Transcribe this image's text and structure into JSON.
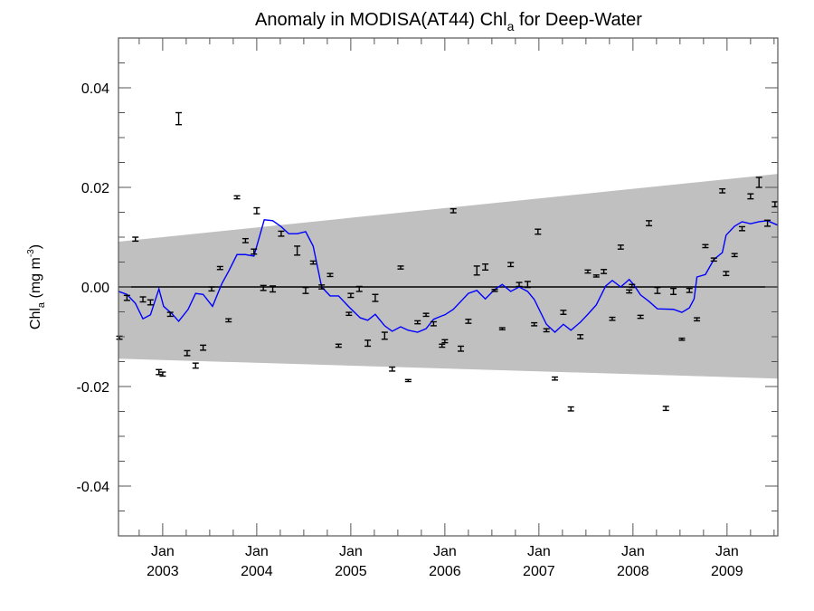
{
  "chart_data": {
    "type": "scatter",
    "title": "Anomaly in MODISA(AT44) Chl",
    "title_subscript": "a",
    "title_suffix": " for Deep-Water",
    "ylabel": "Chl",
    "ylabel_subscript": "a",
    "ylabel_units": " (mg m",
    "ylabel_units_sup": "-3",
    "ylabel_units_close": ")",
    "xlim": [
      2002.53,
      2009.54
    ],
    "ylim": [
      -0.05,
      0.05
    ],
    "yticks": [
      0.04,
      0.02,
      0.0,
      -0.02,
      -0.04
    ],
    "ytick_labels": [
      "0.04",
      "0.02",
      "0.00",
      "-0.02",
      "-0.04"
    ],
    "yminor_step": 0.005,
    "xticks": [
      2003,
      2004,
      2005,
      2006,
      2007,
      2008,
      2009
    ],
    "xtick_labels_top": [
      "Jan",
      "Jan",
      "Jan",
      "Jan",
      "Jan",
      "Jan",
      "Jan"
    ],
    "xtick_labels_bottom": [
      "2003",
      "2004",
      "2005",
      "2006",
      "2007",
      "2008",
      "2009"
    ],
    "xminor_step": 0.25,
    "zero_line": 0.0,
    "band": {
      "name": "confidence envelope",
      "color": "#c0c0c0",
      "upper": [
        [
          2002.53,
          0.0091
        ],
        [
          2009.54,
          0.0227
        ]
      ],
      "lower": [
        [
          2002.53,
          -0.0144
        ],
        [
          2009.54,
          -0.0184
        ]
      ]
    },
    "series": [
      {
        "name": "monthly anomaly",
        "style": "errorbar",
        "color": "#000000",
        "points": [
          [
            2002.54,
            -0.0102,
            0.0003
          ],
          [
            2002.62,
            -0.0022,
            0.0005
          ],
          [
            2002.71,
            0.0096,
            0.0004
          ],
          [
            2002.79,
            -0.0025,
            0.0005
          ],
          [
            2002.87,
            -0.0031,
            0.0005
          ],
          [
            2002.96,
            -0.0171,
            0.0005
          ],
          [
            2003.0,
            -0.0175,
            0.0004
          ],
          [
            2003.08,
            -0.0055,
            0.0004
          ],
          [
            2003.17,
            0.0338,
            0.0012
          ],
          [
            2003.26,
            -0.0133,
            0.0005
          ],
          [
            2003.35,
            -0.0158,
            0.0005
          ],
          [
            2003.43,
            -0.0122,
            0.0005
          ],
          [
            2003.52,
            -0.0004,
            0.0004
          ],
          [
            2003.61,
            0.0038,
            0.0003
          ],
          [
            2003.7,
            -0.0067,
            0.0003
          ],
          [
            2003.79,
            0.018,
            0.0003
          ],
          [
            2003.88,
            0.0093,
            0.0004
          ],
          [
            2003.97,
            0.0071,
            0.0005
          ],
          [
            2004.0,
            0.0153,
            0.0006
          ],
          [
            2004.07,
            -0.0002,
            0.0005
          ],
          [
            2004.17,
            -0.0004,
            0.0006
          ],
          [
            2004.26,
            0.0107,
            0.0005
          ],
          [
            2004.43,
            0.0073,
            0.0009
          ],
          [
            2004.52,
            -0.0007,
            0.0006
          ],
          [
            2004.6,
            0.0049,
            0.0003
          ],
          [
            2004.69,
            0.0,
            0.0004
          ],
          [
            2004.78,
            0.0024,
            0.0003
          ],
          [
            2004.87,
            -0.0118,
            0.0003
          ],
          [
            2004.98,
            -0.0054,
            0.0003
          ],
          [
            2005.0,
            -0.0017,
            0.0004
          ],
          [
            2005.09,
            -0.0004,
            0.0005
          ],
          [
            2005.18,
            -0.0113,
            0.0006
          ],
          [
            2005.26,
            -0.0022,
            0.0007
          ],
          [
            2005.36,
            -0.0098,
            0.0007
          ],
          [
            2005.44,
            -0.0165,
            0.0004
          ],
          [
            2005.53,
            0.0039,
            0.0003
          ],
          [
            2005.61,
            -0.0188,
            0.0002
          ],
          [
            2005.71,
            -0.0071,
            0.0003
          ],
          [
            2005.8,
            -0.0056,
            0.0003
          ],
          [
            2005.88,
            -0.0074,
            0.0004
          ],
          [
            2005.97,
            -0.0118,
            0.0003
          ],
          [
            2006.0,
            -0.0109,
            0.0003
          ],
          [
            2006.09,
            0.0153,
            0.0004
          ],
          [
            2006.17,
            -0.0124,
            0.0005
          ],
          [
            2006.25,
            -0.0069,
            0.0004
          ],
          [
            2006.34,
            0.0033,
            0.0009
          ],
          [
            2006.43,
            0.004,
            0.0006
          ],
          [
            2006.53,
            -0.0007,
            0.0002
          ],
          [
            2006.61,
            -0.0084,
            0.0002
          ],
          [
            2006.7,
            0.0045,
            0.0004
          ],
          [
            2006.79,
            0.0005,
            0.0004
          ],
          [
            2006.88,
            0.0005,
            0.0006
          ],
          [
            2006.95,
            -0.0075,
            0.0003
          ],
          [
            2006.99,
            0.0111,
            0.0005
          ],
          [
            2007.08,
            -0.0087,
            0.0003
          ],
          [
            2007.17,
            -0.0184,
            0.0003
          ],
          [
            2007.26,
            -0.0051,
            0.0004
          ],
          [
            2007.34,
            -0.0245,
            0.0004
          ],
          [
            2007.44,
            -0.01,
            0.0004
          ],
          [
            2007.52,
            0.0031,
            0.0003
          ],
          [
            2007.61,
            0.0022,
            0.0002
          ],
          [
            2007.69,
            0.0031,
            0.0004
          ],
          [
            2007.78,
            -0.0064,
            0.0003
          ],
          [
            2007.87,
            0.008,
            0.0004
          ],
          [
            2007.96,
            -0.0009,
            0.0003
          ],
          [
            2007.99,
            0.0002,
            0.0003
          ],
          [
            2008.08,
            -0.006,
            0.0003
          ],
          [
            2008.17,
            0.0128,
            0.0005
          ],
          [
            2008.26,
            -0.0007,
            0.0006
          ],
          [
            2008.35,
            -0.0244,
            0.0004
          ],
          [
            2008.43,
            -0.0009,
            0.0006
          ],
          [
            2008.52,
            -0.0105,
            0.0002
          ],
          [
            2008.6,
            -0.0007,
            0.0004
          ],
          [
            2008.68,
            -0.0065,
            0.0003
          ],
          [
            2008.77,
            0.0082,
            0.0003
          ],
          [
            2008.86,
            0.0055,
            0.0003
          ],
          [
            2008.95,
            0.0193,
            0.0004
          ],
          [
            2008.99,
            0.0027,
            0.0004
          ],
          [
            2009.08,
            0.0064,
            0.0003
          ],
          [
            2009.16,
            0.0117,
            0.0004
          ],
          [
            2009.25,
            0.0182,
            0.0005
          ],
          [
            2009.34,
            0.021,
            0.001
          ],
          [
            2009.43,
            0.0128,
            0.0006
          ],
          [
            2009.51,
            0.0166,
            0.0005
          ]
        ]
      },
      {
        "name": "smoothed anomaly",
        "style": "line",
        "color": "#0000ff",
        "points": [
          [
            2002.53,
            -0.0009
          ],
          [
            2002.62,
            -0.0015
          ],
          [
            2002.71,
            -0.0033
          ],
          [
            2002.79,
            -0.0064
          ],
          [
            2002.87,
            -0.0056
          ],
          [
            2002.96,
            -0.0004
          ],
          [
            2003.01,
            -0.0039
          ],
          [
            2003.1,
            -0.0054
          ],
          [
            2003.17,
            -0.0069
          ],
          [
            2003.27,
            -0.0045
          ],
          [
            2003.35,
            -0.0013
          ],
          [
            2003.43,
            -0.0015
          ],
          [
            2003.53,
            -0.0039
          ],
          [
            2003.63,
            0.0007
          ],
          [
            2003.7,
            0.0031
          ],
          [
            2003.79,
            0.0065
          ],
          [
            2003.88,
            0.0065
          ],
          [
            2003.97,
            0.0062
          ],
          [
            2004.08,
            0.0135
          ],
          [
            2004.17,
            0.0133
          ],
          [
            2004.26,
            0.0121
          ],
          [
            2004.34,
            0.0107
          ],
          [
            2004.43,
            0.0107
          ],
          [
            2004.52,
            0.0111
          ],
          [
            2004.6,
            0.0082
          ],
          [
            2004.69,
            0.0
          ],
          [
            2004.78,
            -0.0018
          ],
          [
            2004.87,
            -0.0018
          ],
          [
            2004.98,
            -0.004
          ],
          [
            2005.1,
            -0.0062
          ],
          [
            2005.18,
            -0.0067
          ],
          [
            2005.26,
            -0.0055
          ],
          [
            2005.36,
            -0.0078
          ],
          [
            2005.44,
            -0.0089
          ],
          [
            2005.53,
            -0.008
          ],
          [
            2005.61,
            -0.0087
          ],
          [
            2005.71,
            -0.0091
          ],
          [
            2005.8,
            -0.0084
          ],
          [
            2005.88,
            -0.0065
          ],
          [
            2005.97,
            -0.0058
          ],
          [
            2006.0,
            -0.0056
          ],
          [
            2006.09,
            -0.0045
          ],
          [
            2006.17,
            -0.0029
          ],
          [
            2006.25,
            -0.0013
          ],
          [
            2006.34,
            -0.0007
          ],
          [
            2006.43,
            -0.0024
          ],
          [
            2006.53,
            -0.0005
          ],
          [
            2006.61,
            0.0005
          ],
          [
            2006.7,
            -0.0009
          ],
          [
            2006.79,
            0.0
          ],
          [
            2006.88,
            -0.0009
          ],
          [
            2006.95,
            -0.0025
          ],
          [
            2007.08,
            -0.0075
          ],
          [
            2007.17,
            -0.0091
          ],
          [
            2007.26,
            -0.0075
          ],
          [
            2007.34,
            -0.0087
          ],
          [
            2007.44,
            -0.0071
          ],
          [
            2007.52,
            -0.0055
          ],
          [
            2007.61,
            -0.0036
          ],
          [
            2007.71,
            0.0002
          ],
          [
            2007.78,
            0.0013
          ],
          [
            2007.87,
            0.0
          ],
          [
            2007.96,
            0.0015
          ],
          [
            2008.01,
            0.0004
          ],
          [
            2008.08,
            -0.0016
          ],
          [
            2008.17,
            -0.0029
          ],
          [
            2008.26,
            -0.0044
          ],
          [
            2008.43,
            -0.0045
          ],
          [
            2008.52,
            -0.0051
          ],
          [
            2008.6,
            -0.0042
          ],
          [
            2008.65,
            -0.0024
          ],
          [
            2008.68,
            0.002
          ],
          [
            2008.77,
            0.0025
          ],
          [
            2008.86,
            0.0055
          ],
          [
            2008.95,
            0.0069
          ],
          [
            2008.99,
            0.0104
          ],
          [
            2009.08,
            0.0122
          ],
          [
            2009.16,
            0.0131
          ],
          [
            2009.25,
            0.0127
          ],
          [
            2009.34,
            0.0131
          ],
          [
            2009.43,
            0.0133
          ],
          [
            2009.54,
            0.0124
          ]
        ]
      }
    ]
  }
}
